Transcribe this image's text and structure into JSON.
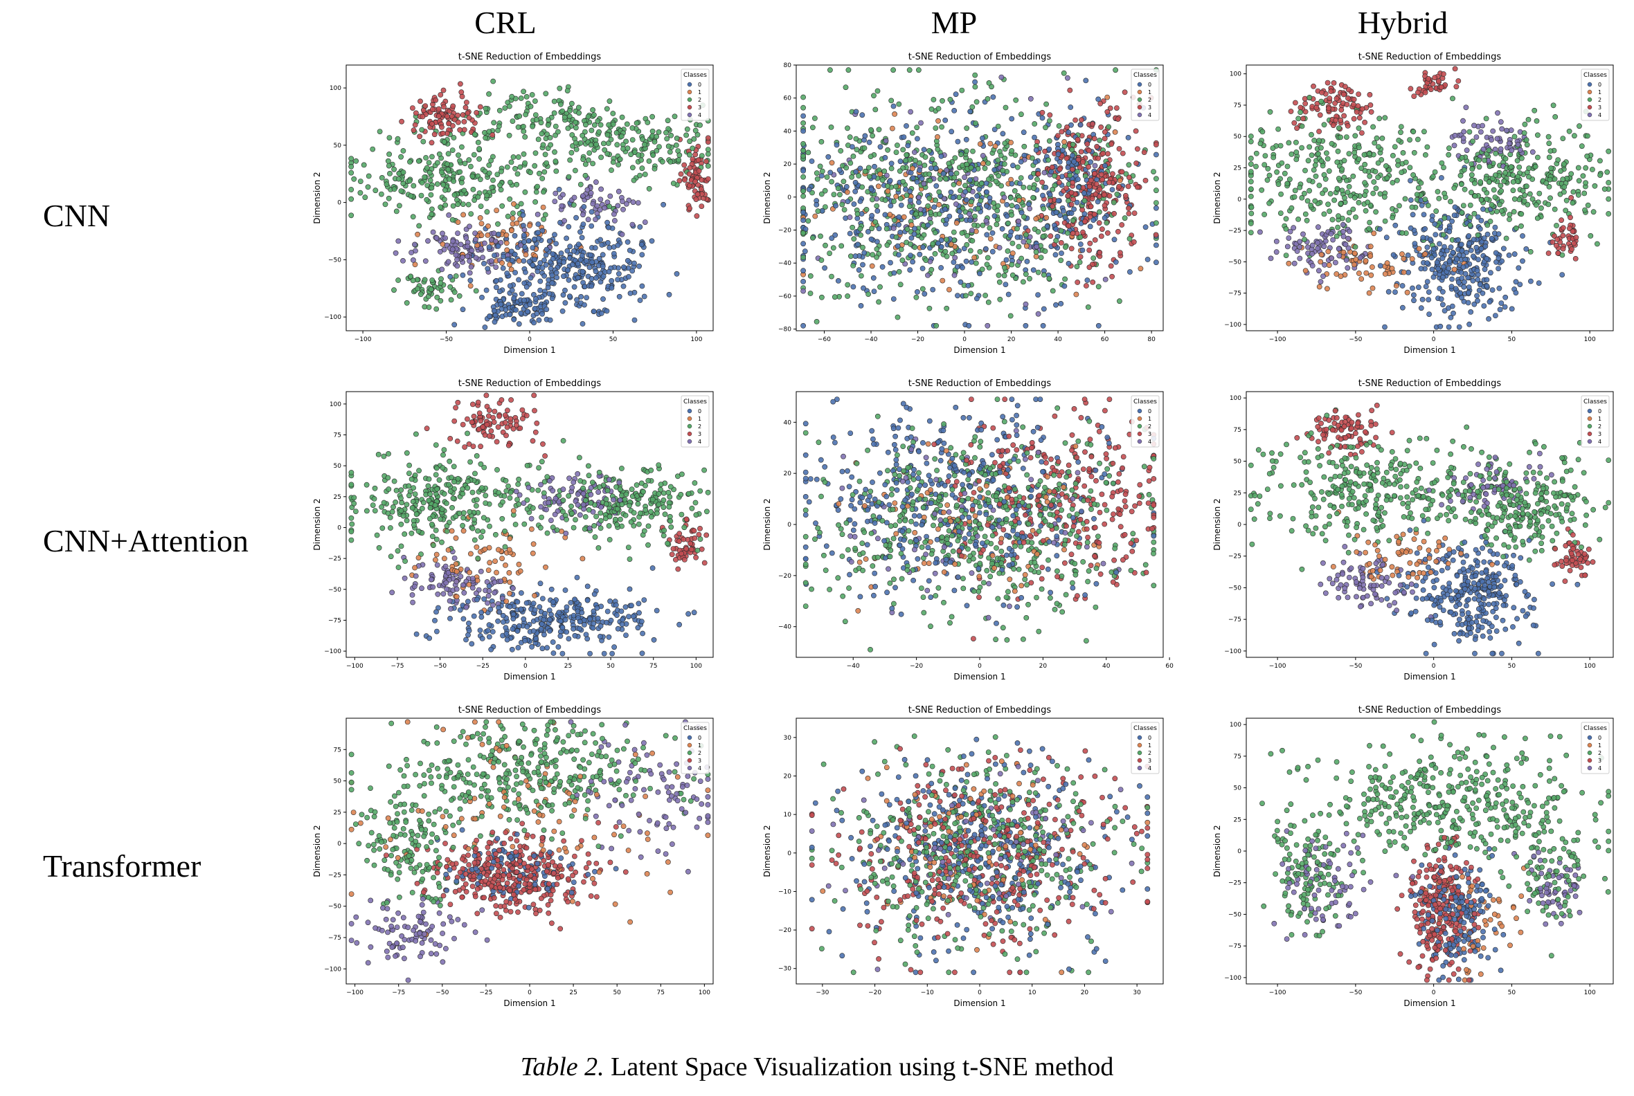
{
  "columns": [
    "CRL",
    "MP",
    "Hybrid"
  ],
  "rows": [
    "CNN",
    "CNN+Attention",
    "Transformer"
  ],
  "caption": {
    "label": "Table 2.",
    "text": " Latent Space Visualization using t-SNE method"
  },
  "colors": {
    "0": "#4c72b0",
    "1": "#dd8452",
    "2": "#55a868",
    "3": "#c44e52",
    "4": "#8172b3"
  },
  "chart_data": [
    {
      "type": "scatter",
      "row": "CNN",
      "column": "CRL",
      "title": "t-SNE Reduction of Embeddings",
      "xlabel": "Dimension 1",
      "ylabel": "Dimension 2",
      "xticks": [
        -100,
        -50,
        0,
        50,
        100
      ],
      "yticks": [
        -100,
        -50,
        0,
        50,
        100
      ],
      "xlim": [
        -110,
        110
      ],
      "ylim": [
        -112,
        120
      ],
      "legend": {
        "title": "Classes",
        "entries": [
          "0",
          "1",
          "2",
          "3",
          "4"
        ],
        "placement": "top-right"
      },
      "clusters": [
        {
          "cls": 0,
          "x": 25,
          "y": -55,
          "sx": 25,
          "sy": 20,
          "n": 320
        },
        {
          "cls": 0,
          "x": -10,
          "y": -90,
          "sx": 15,
          "sy": 8,
          "n": 90
        },
        {
          "cls": 2,
          "x": -40,
          "y": 22,
          "sx": 35,
          "sy": 18,
          "n": 280
        },
        {
          "cls": 2,
          "x": 60,
          "y": 50,
          "sx": 25,
          "sy": 15,
          "n": 180
        },
        {
          "cls": 2,
          "x": 10,
          "y": 75,
          "sx": 25,
          "sy": 12,
          "n": 100
        },
        {
          "cls": 2,
          "x": -60,
          "y": -75,
          "sx": 10,
          "sy": 8,
          "n": 50
        },
        {
          "cls": 3,
          "x": -50,
          "y": 75,
          "sx": 12,
          "sy": 10,
          "n": 90
        },
        {
          "cls": 3,
          "x": 100,
          "y": 25,
          "sx": 5,
          "sy": 15,
          "n": 70
        },
        {
          "cls": 4,
          "x": -40,
          "y": -40,
          "sx": 18,
          "sy": 10,
          "n": 100
        },
        {
          "cls": 4,
          "x": 40,
          "y": 0,
          "sx": 15,
          "sy": 10,
          "n": 60
        },
        {
          "cls": 1,
          "x": -20,
          "y": -30,
          "sx": 20,
          "sy": 15,
          "n": 60
        }
      ]
    },
    {
      "type": "scatter",
      "row": "CNN",
      "column": "MP",
      "title": "t-SNE Reduction of Embeddings",
      "xlabel": "Dimension 1",
      "ylabel": "Dimension 2",
      "xticks": [
        -60,
        -40,
        -20,
        0,
        20,
        40,
        60,
        80
      ],
      "yticks": [
        -80,
        -60,
        -40,
        -20,
        0,
        20,
        40,
        60,
        80
      ],
      "xlim": [
        -72,
        85
      ],
      "ylim": [
        -81,
        80
      ],
      "legend": {
        "title": "Classes",
        "entries": [
          "0",
          "1",
          "2",
          "3",
          "4"
        ],
        "placement": "top-right"
      },
      "clusters": [
        {
          "cls": 0,
          "x": -5,
          "y": -5,
          "sx": 38,
          "sy": 30,
          "n": 420
        },
        {
          "cls": 2,
          "x": -5,
          "y": 0,
          "sx": 38,
          "sy": 30,
          "n": 620
        },
        {
          "cls": 3,
          "x": 55,
          "y": 5,
          "sx": 12,
          "sy": 25,
          "n": 260
        },
        {
          "cls": 0,
          "x": 45,
          "y": 20,
          "sx": 10,
          "sy": 20,
          "n": 90
        },
        {
          "cls": 1,
          "x": 0,
          "y": 0,
          "sx": 32,
          "sy": 26,
          "n": 90
        },
        {
          "cls": 4,
          "x": 0,
          "y": 0,
          "sx": 32,
          "sy": 26,
          "n": 80
        }
      ]
    },
    {
      "type": "scatter",
      "row": "CNN",
      "column": "Hybrid",
      "title": "t-SNE Reduction of Embeddings",
      "xlabel": "Dimension 1",
      "ylabel": "Dimension 2",
      "xticks": [
        -100,
        -50,
        0,
        50,
        100
      ],
      "yticks": [
        -100,
        -75,
        -50,
        -25,
        0,
        25,
        50,
        75,
        100
      ],
      "xlim": [
        -120,
        115
      ],
      "ylim": [
        -105,
        107
      ],
      "legend": {
        "title": "Classes",
        "entries": [
          "0",
          "1",
          "2",
          "3",
          "4"
        ],
        "placement": "top-right"
      },
      "clusters": [
        {
          "cls": 0,
          "x": 15,
          "y": -50,
          "sx": 20,
          "sy": 22,
          "n": 320
        },
        {
          "cls": 2,
          "x": -55,
          "y": 15,
          "sx": 35,
          "sy": 25,
          "n": 320
        },
        {
          "cls": 2,
          "x": 55,
          "y": 15,
          "sx": 30,
          "sy": 22,
          "n": 280
        },
        {
          "cls": 3,
          "x": -65,
          "y": 75,
          "sx": 12,
          "sy": 10,
          "n": 90
        },
        {
          "cls": 3,
          "x": 0,
          "y": 90,
          "sx": 8,
          "sy": 6,
          "n": 40
        },
        {
          "cls": 3,
          "x": 85,
          "y": -30,
          "sx": 5,
          "sy": 10,
          "n": 40
        },
        {
          "cls": 4,
          "x": -70,
          "y": -40,
          "sx": 15,
          "sy": 10,
          "n": 80
        },
        {
          "cls": 4,
          "x": 35,
          "y": 45,
          "sx": 15,
          "sy": 10,
          "n": 60
        },
        {
          "cls": 1,
          "x": -40,
          "y": -55,
          "sx": 20,
          "sy": 12,
          "n": 60
        }
      ]
    },
    {
      "type": "scatter",
      "row": "CNN+Attention",
      "column": "CRL",
      "title": "t-SNE Reduction of Embeddings",
      "xlabel": "Dimension 1",
      "ylabel": "Dimension 2",
      "xticks": [
        -100,
        -75,
        -50,
        -25,
        0,
        25,
        50,
        75,
        100
      ],
      "yticks": [
        -100,
        -75,
        -50,
        -25,
        0,
        25,
        50,
        75,
        100
      ],
      "xlim": [
        -105,
        110
      ],
      "ylim": [
        -105,
        110
      ],
      "legend": {
        "title": "Classes",
        "entries": [
          "0",
          "1",
          "2",
          "3",
          "4"
        ],
        "placement": "top-right"
      },
      "clusters": [
        {
          "cls": 0,
          "x": 15,
          "y": -75,
          "sx": 28,
          "sy": 12,
          "n": 300
        },
        {
          "cls": 2,
          "x": -50,
          "y": 20,
          "sx": 30,
          "sy": 20,
          "n": 300
        },
        {
          "cls": 2,
          "x": 60,
          "y": 20,
          "sx": 25,
          "sy": 15,
          "n": 220
        },
        {
          "cls": 3,
          "x": -20,
          "y": 85,
          "sx": 15,
          "sy": 10,
          "n": 90
        },
        {
          "cls": 3,
          "x": 95,
          "y": -15,
          "sx": 5,
          "sy": 10,
          "n": 50
        },
        {
          "cls": 4,
          "x": -40,
          "y": -45,
          "sx": 15,
          "sy": 10,
          "n": 90
        },
        {
          "cls": 4,
          "x": 30,
          "y": 25,
          "sx": 15,
          "sy": 10,
          "n": 80
        },
        {
          "cls": 1,
          "x": -20,
          "y": -25,
          "sx": 22,
          "sy": 15,
          "n": 70
        }
      ]
    },
    {
      "type": "scatter",
      "row": "CNN+Attention",
      "column": "MP",
      "title": "t-SNE Reduction of Embeddings",
      "xlabel": "Dimension 1",
      "ylabel": "Dimension 2",
      "xticks": [
        -40,
        -20,
        0,
        20,
        40,
        60
      ],
      "yticks": [
        -40,
        -20,
        0,
        20,
        40
      ],
      "xlim": [
        -58,
        58
      ],
      "ylim": [
        -52,
        52
      ],
      "legend": {
        "title": "Classes",
        "entries": [
          "0",
          "1",
          "2",
          "3",
          "4"
        ],
        "placement": "top-right"
      },
      "clusters": [
        {
          "cls": 0,
          "x": -10,
          "y": 10,
          "sx": 25,
          "sy": 18,
          "n": 380
        },
        {
          "cls": 2,
          "x": 0,
          "y": 0,
          "sx": 25,
          "sy": 18,
          "n": 520
        },
        {
          "cls": 3,
          "x": 25,
          "y": 10,
          "sx": 18,
          "sy": 18,
          "n": 260
        },
        {
          "cls": 1,
          "x": 0,
          "y": 0,
          "sx": 22,
          "sy": 16,
          "n": 80
        },
        {
          "cls": 4,
          "x": 0,
          "y": 0,
          "sx": 22,
          "sy": 16,
          "n": 70
        }
      ]
    },
    {
      "type": "scatter",
      "row": "CNN+Attention",
      "column": "Hybrid",
      "title": "t-SNE Reduction of Embeddings",
      "xlabel": "Dimension 1",
      "ylabel": "Dimension 2",
      "xticks": [
        -100,
        -50,
        0,
        50,
        100
      ],
      "yticks": [
        -100,
        -75,
        -50,
        -25,
        0,
        25,
        50,
        75,
        100
      ],
      "xlim": [
        -120,
        115
      ],
      "ylim": [
        -105,
        105
      ],
      "legend": {
        "title": "Classes",
        "entries": [
          "0",
          "1",
          "2",
          "3",
          "4"
        ],
        "placement": "top-right"
      },
      "clusters": [
        {
          "cls": 0,
          "x": 25,
          "y": -55,
          "sx": 20,
          "sy": 20,
          "n": 300
        },
        {
          "cls": 2,
          "x": -40,
          "y": 25,
          "sx": 35,
          "sy": 20,
          "n": 300
        },
        {
          "cls": 2,
          "x": 60,
          "y": 15,
          "sx": 25,
          "sy": 18,
          "n": 240
        },
        {
          "cls": 3,
          "x": -60,
          "y": 75,
          "sx": 12,
          "sy": 8,
          "n": 80
        },
        {
          "cls": 3,
          "x": 90,
          "y": -25,
          "sx": 6,
          "sy": 8,
          "n": 50
        },
        {
          "cls": 4,
          "x": -40,
          "y": -45,
          "sx": 15,
          "sy": 10,
          "n": 80
        },
        {
          "cls": 4,
          "x": 40,
          "y": 30,
          "sx": 15,
          "sy": 10,
          "n": 60
        },
        {
          "cls": 1,
          "x": -20,
          "y": -25,
          "sx": 20,
          "sy": 12,
          "n": 60
        }
      ]
    },
    {
      "type": "scatter",
      "row": "Transformer",
      "column": "CRL",
      "title": "t-SNE Reduction of Embeddings",
      "xlabel": "Dimension 1",
      "ylabel": "Dimension 2",
      "xticks": [
        -100,
        -75,
        -50,
        -25,
        0,
        25,
        50,
        75,
        100
      ],
      "yticks": [
        -100,
        -75,
        -50,
        -25,
        0,
        25,
        50,
        75
      ],
      "xlim": [
        -105,
        105
      ],
      "ylim": [
        -112,
        100
      ],
      "legend": {
        "title": "Classes",
        "entries": [
          "0",
          "1",
          "2",
          "3",
          "4"
        ],
        "placement": "top-right"
      },
      "clusters": [
        {
          "cls": 3,
          "x": -10,
          "y": -25,
          "sx": 22,
          "sy": 15,
          "n": 320
        },
        {
          "cls": 0,
          "x": -10,
          "y": -20,
          "sx": 18,
          "sy": 12,
          "n": 100
        },
        {
          "cls": 2,
          "x": 0,
          "y": 55,
          "sx": 40,
          "sy": 20,
          "n": 320
        },
        {
          "cls": 2,
          "x": -70,
          "y": 0,
          "sx": 15,
          "sy": 25,
          "n": 140
        },
        {
          "cls": 4,
          "x": -65,
          "y": -70,
          "sx": 15,
          "sy": 12,
          "n": 90
        },
        {
          "cls": 4,
          "x": 70,
          "y": 40,
          "sx": 20,
          "sy": 25,
          "n": 90
        },
        {
          "cls": 1,
          "x": 0,
          "y": 20,
          "sx": 45,
          "sy": 35,
          "n": 100
        }
      ]
    },
    {
      "type": "scatter",
      "row": "Transformer",
      "column": "MP",
      "title": "t-SNE Reduction of Embeddings",
      "xlabel": "Dimension 1",
      "ylabel": "Dimension 2",
      "xticks": [
        -30,
        -20,
        -10,
        0,
        10,
        20,
        30
      ],
      "yticks": [
        -30,
        -20,
        -10,
        0,
        10,
        20,
        30
      ],
      "xlim": [
        -35,
        35
      ],
      "ylim": [
        -34,
        35
      ],
      "legend": {
        "title": "Classes",
        "entries": [
          "0",
          "1",
          "2",
          "3",
          "4"
        ],
        "placement": "top-right"
      },
      "clusters": [
        {
          "cls": 2,
          "x": 0,
          "y": 0,
          "sx": 13,
          "sy": 12,
          "n": 380
        },
        {
          "cls": 0,
          "x": 0,
          "y": 0,
          "sx": 13,
          "sy": 12,
          "n": 320
        },
        {
          "cls": 3,
          "x": 0,
          "y": 0,
          "sx": 13,
          "sy": 12,
          "n": 320
        },
        {
          "cls": 1,
          "x": 0,
          "y": 0,
          "sx": 12,
          "sy": 11,
          "n": 100
        },
        {
          "cls": 4,
          "x": 0,
          "y": 0,
          "sx": 12,
          "sy": 11,
          "n": 80
        }
      ]
    },
    {
      "type": "scatter",
      "row": "Transformer",
      "column": "Hybrid",
      "title": "t-SNE Reduction of Embeddings",
      "xlabel": "Dimension 1",
      "ylabel": "Dimension 2",
      "xticks": [
        -100,
        -50,
        0,
        50,
        100
      ],
      "yticks": [
        -100,
        -75,
        -50,
        -25,
        0,
        25,
        50,
        75,
        100
      ],
      "xlim": [
        -120,
        115
      ],
      "ylim": [
        -105,
        105
      ],
      "legend": {
        "title": "Classes",
        "entries": [
          "0",
          "1",
          "2",
          "3",
          "4"
        ],
        "placement": "top-right"
      },
      "clusters": [
        {
          "cls": 3,
          "x": 5,
          "y": -45,
          "sx": 10,
          "sy": 25,
          "n": 220
        },
        {
          "cls": 0,
          "x": 15,
          "y": -55,
          "sx": 12,
          "sy": 22,
          "n": 160
        },
        {
          "cls": 2,
          "x": 10,
          "y": 40,
          "sx": 45,
          "sy": 22,
          "n": 360
        },
        {
          "cls": 2,
          "x": -80,
          "y": -15,
          "sx": 15,
          "sy": 25,
          "n": 120
        },
        {
          "cls": 2,
          "x": 75,
          "y": -10,
          "sx": 15,
          "sy": 25,
          "n": 100
        },
        {
          "cls": 4,
          "x": -70,
          "y": -25,
          "sx": 15,
          "sy": 20,
          "n": 70
        },
        {
          "cls": 4,
          "x": 80,
          "y": -30,
          "sx": 10,
          "sy": 15,
          "n": 50
        },
        {
          "cls": 1,
          "x": 30,
          "y": -55,
          "sx": 15,
          "sy": 20,
          "n": 50
        }
      ]
    }
  ]
}
